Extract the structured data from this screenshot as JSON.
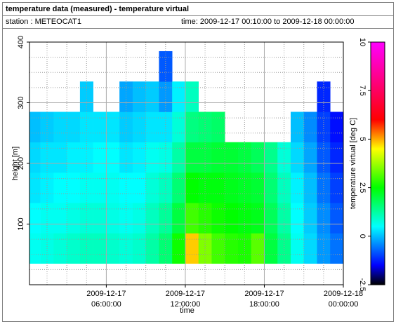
{
  "header": {
    "title": "temperature data (measured) - temperature virtual",
    "station": "station : METEOCAT1",
    "time": "time: 2009-12-17 00:10:00 to 2009-12-18 00:00:00"
  },
  "chart_data": {
    "type": "heatmap",
    "xlabel": "time",
    "ylabel": "height [m]",
    "zlabel": "temperature virtual [deg C]",
    "xlim": [
      0.1667,
      24
    ],
    "xticks": [
      {
        "value": 6,
        "label": "2009-12-17 06:00:00"
      },
      {
        "value": 12,
        "label": "2009-12-17 12:00:00"
      },
      {
        "value": 18,
        "label": "2009-12-17 18:00:00"
      },
      {
        "value": 24,
        "label": "2009-12-18 00:00:00"
      }
    ],
    "xminor": [
      1.5,
      3,
      4.5,
      7.5,
      9,
      10.5,
      13.5,
      15,
      16.5,
      19.5,
      21,
      22.5
    ],
    "ylim": [
      0,
      400
    ],
    "yticks": [
      100,
      200,
      300,
      400
    ],
    "yminor": [
      25,
      50,
      75,
      125,
      150,
      175,
      225,
      250,
      275,
      325,
      350,
      375
    ],
    "zlim": [
      -2.5,
      10
    ],
    "zticks": [
      -2.5,
      0,
      2.5,
      5,
      7.5,
      10
    ],
    "colorscale": [
      [
        -2.5,
        "#000000"
      ],
      [
        -1.5,
        "#0000ff"
      ],
      [
        0.5,
        "#00ffff"
      ],
      [
        2.5,
        "#00ff00"
      ],
      [
        4.5,
        "#ffff00"
      ],
      [
        6,
        "#ff0000"
      ],
      [
        10,
        "#ff00ff"
      ]
    ],
    "x": [
      0.5,
      1.5,
      2.5,
      3.5,
      4.5,
      5.5,
      6.5,
      7.5,
      8.5,
      9.5,
      10.5,
      11.5,
      12.5,
      13.5,
      14.5,
      15.5,
      16.5,
      17.5,
      18.5,
      19.5,
      20.5,
      21.5,
      22.5,
      23.5
    ],
    "ybins": [
      35,
      85,
      135,
      185,
      235,
      285,
      335,
      385
    ],
    "z": [
      [
        0.6,
        0.5,
        0.3,
        0.2,
        0.0,
        null,
        null
      ],
      [
        0.7,
        0.6,
        0.4,
        0.3,
        0.1,
        null,
        null
      ],
      [
        0.8,
        0.6,
        0.5,
        0.3,
        0.2,
        null,
        null
      ],
      [
        0.9,
        0.7,
        0.5,
        0.4,
        0.2,
        null,
        null
      ],
      [
        1.0,
        0.8,
        0.6,
        0.4,
        0.3,
        0.1,
        null
      ],
      [
        1.0,
        0.8,
        0.6,
        0.5,
        0.3,
        null,
        null
      ],
      [
        0.9,
        0.7,
        0.6,
        0.5,
        0.3,
        null,
        null
      ],
      [
        0.8,
        0.6,
        0.5,
        0.3,
        0.1,
        -0.2,
        null
      ],
      [
        0.9,
        0.7,
        0.5,
        0.4,
        0.2,
        0.0,
        null
      ],
      [
        1.2,
        1.0,
        0.8,
        0.6,
        0.3,
        0.1,
        null
      ],
      [
        1.6,
        1.3,
        1.0,
        0.7,
        0.3,
        -0.3,
        -0.8
      ],
      [
        2.6,
        2.0,
        1.6,
        1.2,
        0.8,
        0.4,
        null
      ],
      [
        4.8,
        3.0,
        2.5,
        2.0,
        1.5,
        1.0,
        null
      ],
      [
        3.5,
        2.8,
        2.4,
        2.0,
        1.6,
        null,
        null
      ],
      [
        3.0,
        2.6,
        2.4,
        2.1,
        1.7,
        null,
        null
      ],
      [
        2.8,
        2.5,
        2.3,
        2.1,
        null,
        null,
        null
      ],
      [
        2.7,
        2.4,
        2.2,
        2.0,
        null,
        null,
        null
      ],
      [
        3.2,
        2.3,
        2.1,
        1.8,
        null,
        null,
        null
      ],
      [
        2.0,
        1.8,
        1.6,
        1.4,
        null,
        null,
        null
      ],
      [
        1.4,
        1.2,
        1.0,
        0.8,
        null,
        null,
        null
      ],
      [
        0.6,
        0.5,
        0.4,
        0.2,
        0.0,
        null,
        null
      ],
      [
        0.2,
        0.1,
        0.0,
        -0.2,
        -0.4,
        null,
        null
      ],
      [
        -0.3,
        -0.4,
        -0.6,
        -0.8,
        -1.0,
        -1.2,
        null
      ],
      [
        -0.6,
        -0.8,
        -1.0,
        -1.2,
        -1.4,
        null,
        null
      ]
    ]
  }
}
